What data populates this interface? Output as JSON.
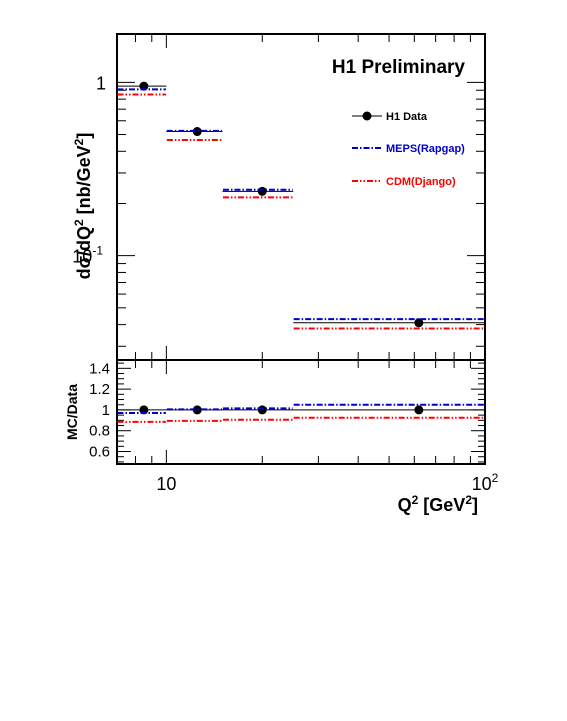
{
  "chart_data": [
    {
      "type": "scatter",
      "title": "H1 Preliminary",
      "xlabel_base": "Q",
      "xlabel_sup": "2",
      "xlabel_unit_base": " [GeV",
      "xlabel_unit_sup": "2",
      "xlabel_unit_close": "]",
      "ylabel_base": "dσ/dQ",
      "ylabel_sup1": "2",
      "ylabel_mid": " [nb/GeV",
      "ylabel_sup2": "2",
      "ylabel_close": "]",
      "xscale": "log",
      "yscale": "log",
      "xlim": [
        7,
        100
      ],
      "ylim": [
        0.025,
        1.9
      ],
      "x_tick_labels": [
        {
          "value": 10,
          "base": "10",
          "sup": ""
        },
        {
          "value": 100,
          "base": "10",
          "sup": "2"
        }
      ],
      "y_tick_labels": [
        {
          "value": 1,
          "base": "1",
          "sup": ""
        },
        {
          "value": 0.1,
          "base": "10",
          "sup": "-1"
        }
      ],
      "legend_position": "top-right",
      "bins": [
        {
          "low": 7,
          "high": 10,
          "center": 8.5
        },
        {
          "low": 10,
          "high": 15,
          "center": 12.5
        },
        {
          "low": 15,
          "high": 25,
          "center": 20
        },
        {
          "low": 25,
          "high": 100,
          "center": 62
        }
      ],
      "series": [
        {
          "name": "H1 Data",
          "style": "points",
          "color": "#000000",
          "values": [
            0.95,
            0.52,
            0.235,
            0.041
          ]
        },
        {
          "name": "MEPS(Rapgap)",
          "style": "dash-dot-blue",
          "color": "#0000cc",
          "values": [
            0.91,
            0.525,
            0.24,
            0.043
          ]
        },
        {
          "name": "CDM(Django)",
          "style": "dash-dot-red",
          "color": "#ff0000",
          "values": [
            0.85,
            0.465,
            0.217,
            0.038
          ]
        }
      ]
    },
    {
      "type": "scatter",
      "ylabel": "MC/Data",
      "xscale": "log",
      "xlim": [
        7,
        100
      ],
      "ylim": [
        0.48,
        1.48
      ],
      "y_tick_labels": [
        "1.4",
        "1.2",
        "1",
        "0.8",
        "0.6"
      ],
      "reference_line": 1,
      "series": [
        {
          "name": "H1 Data",
          "color": "#000000",
          "values": [
            1.0,
            1.0,
            1.0,
            1.0
          ]
        },
        {
          "name": "MEPS(Rapgap)",
          "color": "#0000cc",
          "values": [
            0.97,
            1.005,
            1.015,
            1.05
          ]
        },
        {
          "name": "CDM(Django)",
          "color": "#ff0000",
          "values": [
            0.885,
            0.895,
            0.905,
            0.925
          ]
        }
      ]
    }
  ]
}
